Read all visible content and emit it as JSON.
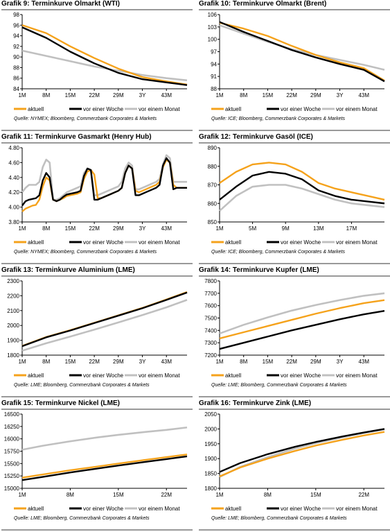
{
  "chart_data": [
    {
      "type": "line",
      "title_prefix": "Grafik 9:",
      "title": "Terminkurve Olmarkt (WTI)",
      "source": "Quelle: NYMEX; Bloomberg, Commerzbank Corporates & Markets",
      "x": [
        1,
        8,
        15,
        22,
        29,
        36,
        43,
        49
      ],
      "x_ticks": [
        "1M",
        "8M",
        "15M",
        "22M",
        "29M",
        "3Y",
        "43M"
      ],
      "xlim": [
        1,
        49
      ],
      "ylim": [
        84,
        98
      ],
      "y_ticks": [
        84,
        86,
        88,
        90,
        92,
        94,
        96,
        98
      ],
      "series": [
        {
          "name": "aktuell",
          "color": "#f5a21b",
          "values": [
            96.0,
            94.5,
            92.0,
            89.8,
            87.8,
            86.2,
            85.4,
            84.8
          ]
        },
        {
          "name": "vor einer Woche",
          "color": "#000000",
          "values": [
            95.6,
            93.6,
            91.0,
            88.8,
            87.0,
            85.8,
            85.2,
            84.7
          ]
        },
        {
          "name": "vor einem Monat",
          "color": "#c0c0c0",
          "values": [
            91.2,
            90.2,
            89.2,
            88.2,
            87.4,
            86.6,
            86.0,
            85.6
          ]
        }
      ]
    },
    {
      "type": "line",
      "title_prefix": "Grafik 10:",
      "title": "Terminkurve Olmarkt (Brent)",
      "source": "Quelle: ICE; Bloomberg, Commerzbank Corporates & Markets",
      "x": [
        1,
        8,
        15,
        22,
        29,
        36,
        43,
        49
      ],
      "x_ticks": [
        "1M",
        "8M",
        "15M",
        "22M",
        "29M",
        "3Y",
        "43M"
      ],
      "xlim": [
        1,
        49
      ],
      "ylim": [
        88,
        106
      ],
      "y_ticks": [
        88,
        91,
        94,
        97,
        100,
        103,
        106
      ],
      "series": [
        {
          "name": "aktuell",
          "color": "#f5a21b",
          "values": [
            104.0,
            102.6,
            100.8,
            98.4,
            96.2,
            94.4,
            93.0,
            90.0
          ]
        },
        {
          "name": "vor einer Woche",
          "color": "#000000",
          "values": [
            104.2,
            101.8,
            99.6,
            97.4,
            95.6,
            94.0,
            92.6,
            89.8
          ]
        },
        {
          "name": "vor einem Monat",
          "color": "#c0c0c0",
          "values": [
            103.4,
            101.4,
            99.4,
            97.6,
            96.2,
            95.0,
            93.8,
            92.6
          ]
        }
      ]
    },
    {
      "type": "line",
      "title_prefix": "Grafik 11:",
      "title": "Terminkurve Gasmarkt (Henry Hub)",
      "source": "Quelle: NYMEX; Bloomberg, Commerzbank Corporates & Markets",
      "x": [
        1,
        2,
        3,
        4,
        5,
        6,
        7,
        8,
        9,
        10,
        11,
        12,
        13,
        14,
        15,
        16,
        17,
        18,
        19,
        20,
        21,
        22,
        23,
        24,
        25,
        26,
        27,
        28,
        29,
        30,
        31,
        32,
        33,
        34,
        35,
        36,
        37,
        38,
        39,
        40,
        41,
        42,
        43,
        44,
        45,
        46,
        47,
        48,
        49
      ],
      "x_ticks": [
        "1M",
        "8M",
        "15M",
        "22M",
        "29M",
        "3Y",
        "43M"
      ],
      "xlim": [
        1,
        49
      ],
      "ylim": [
        3.8,
        4.8
      ],
      "y_ticks": [
        "3.80",
        "4.00",
        "4.20",
        "4.40",
        "4.60",
        "4.80"
      ],
      "series": [
        {
          "name": "aktuell",
          "color": "#f5a21b",
          "values": [
            3.94,
            3.98,
            4.0,
            4.02,
            4.03,
            4.1,
            4.28,
            4.4,
            4.36,
            4.1,
            4.08,
            4.1,
            4.12,
            4.15,
            4.16,
            4.17,
            4.18,
            4.2,
            4.38,
            4.48,
            4.5,
            4.44,
            4.12,
            4.12,
            4.14,
            4.16,
            4.18,
            4.2,
            4.22,
            4.26,
            4.46,
            4.56,
            4.52,
            4.22,
            4.2,
            4.22,
            4.24,
            4.26,
            4.28,
            4.3,
            4.34,
            4.54,
            4.64,
            4.6,
            4.3,
            4.26,
            4.26,
            4.26,
            4.26
          ]
        },
        {
          "name": "vor einer Woche",
          "color": "#000000",
          "values": [
            4.02,
            4.08,
            4.1,
            4.11,
            4.12,
            4.16,
            4.36,
            4.46,
            4.4,
            4.1,
            4.08,
            4.1,
            4.14,
            4.17,
            4.18,
            4.19,
            4.2,
            4.22,
            4.42,
            4.52,
            4.5,
            4.1,
            4.1,
            4.12,
            4.14,
            4.16,
            4.18,
            4.2,
            4.22,
            4.26,
            4.46,
            4.56,
            4.52,
            4.16,
            4.16,
            4.18,
            4.2,
            4.22,
            4.24,
            4.26,
            4.3,
            4.56,
            4.66,
            4.6,
            4.24,
            4.26,
            4.26,
            4.26,
            4.26
          ]
        },
        {
          "name": "vor einem Monat",
          "color": "#c0c0c0",
          "values": [
            4.2,
            4.26,
            4.3,
            4.3,
            4.3,
            4.34,
            4.54,
            4.64,
            4.6,
            4.1,
            4.1,
            4.12,
            4.16,
            4.2,
            4.22,
            4.24,
            4.26,
            4.28,
            4.46,
            4.52,
            4.5,
            4.16,
            4.16,
            4.18,
            4.2,
            4.22,
            4.24,
            4.26,
            4.28,
            4.34,
            4.52,
            4.6,
            4.56,
            4.24,
            4.24,
            4.26,
            4.28,
            4.3,
            4.32,
            4.34,
            4.38,
            4.58,
            4.7,
            4.66,
            4.34,
            4.34,
            4.34,
            4.34,
            4.34
          ]
        }
      ]
    },
    {
      "type": "line",
      "title_prefix": "Grafik 12:",
      "title": "Terminkurve Gasöl (ICE)",
      "source": "Quelle: ICE; Bloomberg, Commerzbank Corporates & Markets",
      "x": [
        1,
        3,
        5,
        7,
        9,
        11,
        13,
        15,
        17,
        19,
        21
      ],
      "x_ticks": [
        "1M",
        "5M",
        "9M",
        "13M",
        "17M"
      ],
      "xlim": [
        1,
        21
      ],
      "ylim": [
        850,
        890
      ],
      "y_ticks": [
        850,
        860,
        870,
        880,
        890
      ],
      "series": [
        {
          "name": "aktuell",
          "color": "#f5a21b",
          "values": [
            871,
            877,
            881,
            882,
            881,
            877,
            871,
            868,
            866,
            864,
            862
          ]
        },
        {
          "name": "vor einer Woche",
          "color": "#000000",
          "values": [
            862,
            869,
            875,
            877,
            876,
            873,
            867,
            864,
            862,
            861,
            860
          ]
        },
        {
          "name": "vor einem Monat",
          "color": "#c0c0c0",
          "values": [
            856,
            864,
            869,
            870,
            870,
            868,
            865,
            862,
            860,
            859,
            858
          ]
        }
      ]
    },
    {
      "type": "line",
      "title_prefix": "Grafik 13:",
      "title": "Terminkurve Aluminium (LME)",
      "source": "Quelle: LME; Bloomberg, Commerzbank Corporates & Markets",
      "x": [
        1,
        8,
        15,
        22,
        29,
        36,
        43,
        49
      ],
      "x_ticks": [
        "1M",
        "8M",
        "15M",
        "22M",
        "29M",
        "3Y",
        "43M"
      ],
      "xlim": [
        1,
        49
      ],
      "ylim": [
        1800,
        2300
      ],
      "y_ticks": [
        1800,
        1900,
        2000,
        2100,
        2200,
        2300
      ],
      "series": [
        {
          "name": "aktuell",
          "color": "#f5a21b",
          "values": [
            1862,
            1922,
            1968,
            2018,
            2068,
            2118,
            2175,
            2225
          ]
        },
        {
          "name": "vor einer Woche",
          "color": "#000000",
          "values": [
            1860,
            1920,
            1966,
            2016,
            2066,
            2116,
            2172,
            2222
          ]
        },
        {
          "name": "vor einem Monat",
          "color": "#c0c0c0",
          "values": [
            1830,
            1880,
            1925,
            1972,
            2020,
            2070,
            2122,
            2172
          ]
        }
      ]
    },
    {
      "type": "line",
      "title_prefix": "Grafik 14:",
      "title": "Terminkurve Kupfer (LME)",
      "source": "Quelle: LME; Bloomberg, Commerzbank Corporates & Markets",
      "x": [
        1,
        8,
        15,
        22,
        29,
        36,
        43,
        49
      ],
      "x_ticks": [
        "1M",
        "8M",
        "15M",
        "22M",
        "29M",
        "3Y",
        "43M"
      ],
      "xlim": [
        1,
        49
      ],
      "ylim": [
        7200,
        7800
      ],
      "y_ticks": [
        7200,
        7300,
        7400,
        7500,
        7600,
        7700,
        7800
      ],
      "series": [
        {
          "name": "aktuell",
          "color": "#f5a21b",
          "values": [
            7335,
            7385,
            7435,
            7485,
            7535,
            7580,
            7620,
            7645
          ]
        },
        {
          "name": "vor einer Woche",
          "color": "#000000",
          "values": [
            7250,
            7300,
            7350,
            7400,
            7445,
            7490,
            7530,
            7558
          ]
        },
        {
          "name": "vor einem Monat",
          "color": "#c0c0c0",
          "values": [
            7375,
            7445,
            7505,
            7560,
            7605,
            7645,
            7680,
            7700
          ]
        }
      ]
    },
    {
      "type": "line",
      "title_prefix": "Grafik 15:",
      "title": "Terminkurve Nickel (LME)",
      "source": "Quelle: LME; Bloomberg, Commerzbank Corporates & Markets",
      "x": [
        1,
        4,
        8,
        12,
        15,
        19,
        22,
        25
      ],
      "x_ticks": [
        "1M",
        "8M",
        "15M",
        "22M"
      ],
      "xlim": [
        1,
        25
      ],
      "ylim": [
        15000,
        16500
      ],
      "y_ticks": [
        15000,
        15250,
        15500,
        15750,
        16000,
        16250,
        16500
      ],
      "series": [
        {
          "name": "aktuell",
          "color": "#f5a21b",
          "values": [
            15215,
            15280,
            15365,
            15440,
            15500,
            15575,
            15630,
            15685
          ]
        },
        {
          "name": "vor einer Woche",
          "color": "#000000",
          "values": [
            15165,
            15230,
            15320,
            15400,
            15460,
            15535,
            15590,
            15645
          ]
        },
        {
          "name": "vor einem Monat",
          "color": "#c0c0c0",
          "values": [
            15780,
            15860,
            15950,
            16030,
            16080,
            16140,
            16180,
            16230
          ]
        }
      ]
    },
    {
      "type": "line",
      "title_prefix": "Grafik 16:",
      "title": "Terminkurve Zink (LME)",
      "source": "Quelle: LME; Bloomberg, Commerzbank Corporates & Markets",
      "x": [
        1,
        4,
        8,
        12,
        15,
        19,
        22,
        25
      ],
      "x_ticks": [
        "1M",
        "8M",
        "15M",
        "22M"
      ],
      "xlim": [
        1,
        25
      ],
      "ylim": [
        1800,
        2050
      ],
      "y_ticks": [
        1800,
        1850,
        1900,
        1950,
        2000,
        2050
      ],
      "series": [
        {
          "name": "aktuell",
          "color": "#f5a21b",
          "values": [
            1840,
            1870,
            1900,
            1926,
            1944,
            1964,
            1978,
            1990
          ]
        },
        {
          "name": "vor einer Woche",
          "color": "#000000",
          "values": [
            1855,
            1885,
            1915,
            1940,
            1956,
            1975,
            1988,
            2000
          ]
        },
        {
          "name": "vor einem Monat",
          "color": "#c0c0c0",
          "values": [
            1838,
            1872,
            1905,
            1934,
            1952,
            1972,
            1986,
            1998
          ]
        }
      ]
    }
  ]
}
